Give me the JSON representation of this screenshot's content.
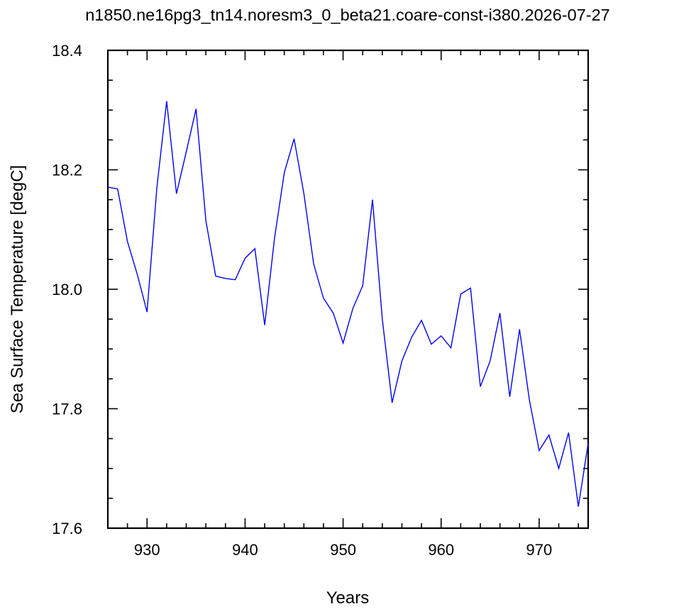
{
  "chart_data": {
    "type": "line",
    "title": "n1850.ne16pg3_tn14.noresm3_0_beta21.coare-const-i380.2026-07-27",
    "xlabel": "Years",
    "ylabel": "Sea Surface Temperature [degC]",
    "xlim": [
      926,
      975
    ],
    "ylim": [
      17.6,
      18.4
    ],
    "x_ticks": [
      930,
      940,
      950,
      960,
      970
    ],
    "x_tick_labels": [
      "930",
      "940",
      "950",
      "960",
      "970"
    ],
    "y_ticks": [
      17.6,
      17.8,
      18.0,
      18.2,
      18.4
    ],
    "y_tick_labels": [
      "17.6",
      "17.8",
      "18.0",
      "18.2",
      "18.4"
    ],
    "grid": false,
    "legend": "none",
    "series": [
      {
        "color": "#0000ee",
        "x": [
          926,
          927,
          928,
          929,
          930,
          931,
          932,
          933,
          934,
          935,
          936,
          937,
          938,
          939,
          940,
          941,
          942,
          943,
          944,
          945,
          946,
          947,
          948,
          949,
          950,
          951,
          952,
          953,
          954,
          955,
          956,
          957,
          958,
          959,
          960,
          961,
          962,
          963,
          964,
          965,
          966,
          967,
          968,
          969,
          970,
          971,
          972,
          973,
          974,
          975
        ],
        "values": [
          18.171,
          18.168,
          18.08,
          18.025,
          17.962,
          18.17,
          18.315,
          18.16,
          18.23,
          18.302,
          18.115,
          18.022,
          18.018,
          18.016,
          18.052,
          18.068,
          17.94,
          18.085,
          18.195,
          18.252,
          18.16,
          18.042,
          17.985,
          17.96,
          17.91,
          17.968,
          18.006,
          18.15,
          17.95,
          17.81,
          17.88,
          17.92,
          17.948,
          17.908,
          17.922,
          17.902,
          17.992,
          18.002,
          17.837,
          17.88,
          17.96,
          17.82,
          17.933,
          17.815,
          17.73,
          17.756,
          17.7,
          17.76,
          17.636,
          17.742
        ]
      }
    ]
  }
}
